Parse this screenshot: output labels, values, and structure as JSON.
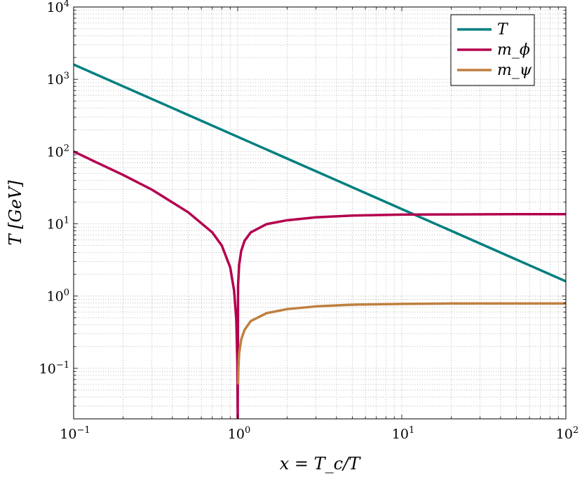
{
  "chart_data": {
    "type": "line",
    "xlabel": "x = T_c/T",
    "ylabel": "T [GeV]",
    "x_scale": "log",
    "y_scale": "log",
    "xlim": [
      0.1,
      100
    ],
    "ylim": [
      0.02,
      10000
    ],
    "grid": true,
    "legend_position": "top-right",
    "x_ticks": [
      {
        "base": "10",
        "exp": "−1",
        "value": 0.1
      },
      {
        "base": "10",
        "exp": "0",
        "value": 1
      },
      {
        "base": "10",
        "exp": "1",
        "value": 10
      },
      {
        "base": "10",
        "exp": "2",
        "value": 100
      }
    ],
    "y_ticks": [
      {
        "base": "10",
        "exp": "−1",
        "value": 0.1
      },
      {
        "base": "10",
        "exp": "0",
        "value": 1
      },
      {
        "base": "10",
        "exp": "1",
        "value": 10
      },
      {
        "base": "10",
        "exp": "2",
        "value": 100
      },
      {
        "base": "10",
        "exp": "3",
        "value": 1000
      },
      {
        "base": "10",
        "exp": "4",
        "value": 10000
      }
    ],
    "series": [
      {
        "name": "T",
        "color": "#007f7f",
        "x": [
          0.1,
          0.2,
          0.5,
          1,
          2,
          5,
          10,
          20,
          50,
          100
        ],
        "y": [
          1600,
          800,
          320,
          160,
          80,
          32,
          16,
          8,
          3.2,
          1.6
        ]
      },
      {
        "name": "m_ϕ",
        "color": "#b3004d",
        "x": [
          0.1,
          0.2,
          0.3,
          0.5,
          0.7,
          0.8,
          0.9,
          0.95,
          0.98,
          0.995,
          1.0,
          1.005,
          1.02,
          1.05,
          1.1,
          1.2,
          1.5,
          2,
          3,
          5,
          10,
          20,
          50,
          100
        ],
        "y": [
          100,
          47.5,
          29.7,
          14.4,
          7.6,
          5.0,
          2.5,
          1.2,
          0.48,
          0.12,
          0.0,
          1.4,
          2.7,
          4.2,
          5.8,
          7.6,
          9.9,
          11.2,
          12.3,
          13.0,
          13.4,
          13.5,
          13.6,
          13.6
        ]
      },
      {
        "name": "m_ψ",
        "color": "#bf7f40",
        "x": [
          1.005,
          1.01,
          1.02,
          1.05,
          1.1,
          1.2,
          1.5,
          2,
          3,
          5,
          10,
          20,
          50,
          100
        ],
        "y": [
          0.06,
          0.1,
          0.16,
          0.25,
          0.34,
          0.45,
          0.58,
          0.66,
          0.72,
          0.76,
          0.78,
          0.79,
          0.79,
          0.79
        ]
      }
    ]
  }
}
